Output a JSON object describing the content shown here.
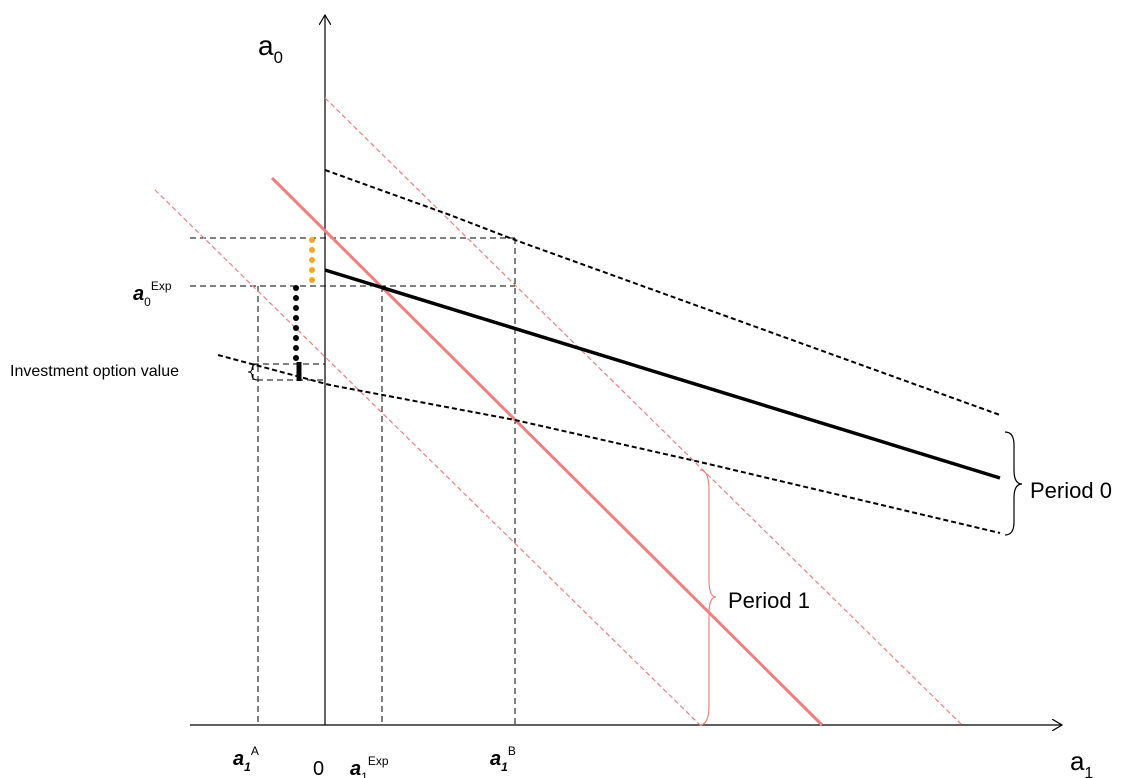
{
  "axes": {
    "y_label": {
      "base": "a",
      "sub": "0"
    },
    "x_label": {
      "base": "a",
      "sub": "1"
    },
    "origin": "0"
  },
  "y_markers": [
    {
      "base": "a",
      "sub": "0",
      "sup": "Exp"
    }
  ],
  "x_markers": [
    {
      "base": "a",
      "sub": "1",
      "sup": "A"
    },
    {
      "base": "a",
      "sub": "1",
      "sup": "Exp"
    },
    {
      "base": "a",
      "sub": "1",
      "sup": "B"
    }
  ],
  "annotations": [
    "Investment option value",
    "Period 0",
    "Period 1"
  ]
}
